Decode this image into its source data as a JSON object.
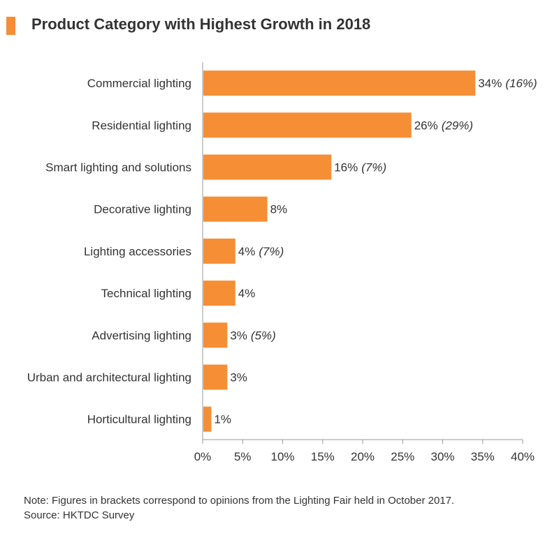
{
  "title": "Product Category with Highest Growth in 2018",
  "colors": {
    "bar": "#f68e35",
    "accent": "#f68e35",
    "axis": "#999999",
    "text": "#333333"
  },
  "chart_data": {
    "type": "bar",
    "orientation": "horizontal",
    "categories": [
      "Commercial lighting",
      "Residential lighting",
      "Smart lighting and solutions",
      "Decorative lighting",
      "Lighting accessories",
      "Technical lighting",
      "Advertising lighting",
      "Urban and architectural lighting",
      "Horticultural lighting"
    ],
    "values": [
      34,
      26,
      16,
      8,
      4,
      4,
      3,
      3,
      1
    ],
    "value_labels": [
      "34%",
      "26%",
      "16%",
      "8%",
      "4%",
      "4%",
      "3%",
      "3%",
      "1%"
    ],
    "bracket_labels": [
      "(16%)",
      "(29%)",
      "(7%)",
      "",
      "(7%)",
      "",
      "(5%)",
      "",
      ""
    ],
    "xlim": [
      0,
      40
    ],
    "xticks": [
      0,
      5,
      10,
      15,
      20,
      25,
      30,
      35,
      40
    ],
    "xtick_labels": [
      "0%",
      "5%",
      "10%",
      "15%",
      "20%",
      "25%",
      "30%",
      "35%",
      "40%"
    ],
    "xlabel": "",
    "ylabel": "",
    "grid": false,
    "legend": "none"
  },
  "notes": {
    "note": "Note: Figures in brackets correspond to opinions from the Lighting Fair held in October 2017.",
    "source": "Source: HKTDC Survey"
  }
}
